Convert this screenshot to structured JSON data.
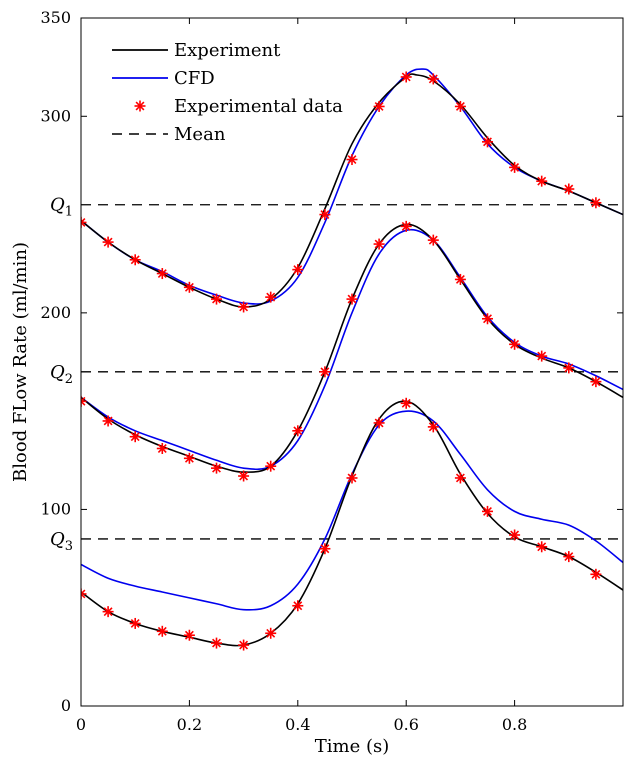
{
  "chart_data": {
    "type": "line",
    "title": "",
    "xlabel": "Time (s)",
    "ylabel": "Blood FLow Rate (ml/min)",
    "xlim": [
      0,
      1
    ],
    "ylim": [
      0,
      350
    ],
    "x_ticks": [
      "0",
      "0.2",
      "0.4",
      "0.6",
      "0.8"
    ],
    "x_tick_values": [
      0,
      0.2,
      0.4,
      0.6,
      0.8
    ],
    "y_ticks": [
      "0",
      "100",
      "200",
      "300",
      "350"
    ],
    "y_tick_values": [
      0,
      100,
      200,
      300,
      350
    ],
    "legend_position": "top-left",
    "legend": [
      {
        "key": "experiment",
        "label": "Experiment",
        "style": "solid",
        "color": "#000000"
      },
      {
        "key": "cfd",
        "label": "CFD",
        "style": "solid",
        "color": "#0000ee"
      },
      {
        "key": "data",
        "label": "Experimental data",
        "style": "marker",
        "color": "#ff0000"
      },
      {
        "key": "mean",
        "label": "Mean",
        "style": "dashed",
        "color": "#000000"
      }
    ],
    "mean_lines": [
      {
        "label": "Q",
        "sub": "1",
        "value": 255
      },
      {
        "label": "Q",
        "sub": "2",
        "value": 170
      },
      {
        "label": "Q",
        "sub": "3",
        "value": 85
      }
    ],
    "series": [
      {
        "group": "Q1",
        "experiment": {
          "x": [
            0,
            0.05,
            0.1,
            0.15,
            0.2,
            0.25,
            0.3,
            0.35,
            0.4,
            0.45,
            0.5,
            0.55,
            0.6,
            0.62,
            0.65,
            0.7,
            0.75,
            0.8,
            0.85,
            0.9,
            0.95,
            1.0
          ],
          "y": [
            247,
            236,
            227,
            220,
            213,
            207,
            203,
            207,
            223,
            253,
            286,
            307,
            320,
            321,
            318,
            306,
            289,
            275,
            267,
            262,
            256,
            250
          ]
        },
        "cfd": {
          "x": [
            0,
            0.05,
            0.1,
            0.15,
            0.2,
            0.25,
            0.3,
            0.35,
            0.4,
            0.45,
            0.5,
            0.55,
            0.6,
            0.63,
            0.65,
            0.7,
            0.75,
            0.8,
            0.85,
            0.9,
            0.95,
            1.0
          ],
          "y": [
            247,
            236,
            227,
            221,
            214,
            209,
            205,
            206,
            218,
            246,
            280,
            305,
            321,
            324,
            321,
            305,
            286,
            274,
            267,
            262,
            256,
            250
          ]
        },
        "data": {
          "x": [
            0,
            0.05,
            0.1,
            0.15,
            0.2,
            0.25,
            0.3,
            0.35,
            0.4,
            0.45,
            0.5,
            0.55,
            0.6,
            0.65,
            0.7,
            0.75,
            0.8,
            0.85,
            0.9,
            0.95
          ],
          "y": [
            246,
            236,
            227,
            220,
            213,
            207,
            203,
            208,
            222,
            250,
            278,
            305,
            320,
            319,
            305,
            287,
            274,
            267,
            263,
            256
          ]
        }
      },
      {
        "group": "Q2",
        "experiment": {
          "x": [
            0,
            0.05,
            0.1,
            0.15,
            0.2,
            0.25,
            0.3,
            0.35,
            0.4,
            0.45,
            0.5,
            0.55,
            0.6,
            0.65,
            0.7,
            0.75,
            0.8,
            0.85,
            0.9,
            0.95,
            1.0
          ],
          "y": [
            157,
            146,
            138,
            132,
            127,
            122,
            119,
            122,
            140,
            170,
            207,
            235,
            245,
            237,
            217,
            197,
            184,
            177,
            172,
            165,
            157
          ]
        },
        "cfd": {
          "x": [
            0,
            0.05,
            0.1,
            0.15,
            0.2,
            0.25,
            0.3,
            0.35,
            0.4,
            0.45,
            0.5,
            0.55,
            0.6,
            0.65,
            0.7,
            0.75,
            0.8,
            0.85,
            0.9,
            0.95,
            1.0
          ],
          "y": [
            157,
            147,
            140,
            135,
            130,
            125,
            121,
            122,
            135,
            163,
            200,
            230,
            242,
            237,
            218,
            198,
            185,
            178,
            174,
            168,
            161
          ]
        },
        "data": {
          "x": [
            0,
            0.05,
            0.1,
            0.15,
            0.2,
            0.25,
            0.3,
            0.35,
            0.4,
            0.45,
            0.5,
            0.55,
            0.6,
            0.65,
            0.7,
            0.75,
            0.8,
            0.85,
            0.9,
            0.95
          ],
          "y": [
            155,
            145,
            137,
            131,
            126,
            121,
            117,
            122,
            140,
            170,
            207,
            235,
            244,
            237,
            217,
            197,
            184,
            178,
            172,
            165
          ]
        }
      },
      {
        "group": "Q3",
        "experiment": {
          "x": [
            0,
            0.05,
            0.1,
            0.15,
            0.2,
            0.25,
            0.3,
            0.35,
            0.4,
            0.45,
            0.5,
            0.55,
            0.6,
            0.65,
            0.7,
            0.75,
            0.8,
            0.85,
            0.9,
            0.95,
            1.0
          ],
          "y": [
            58,
            48,
            42,
            38,
            35,
            32,
            31,
            37,
            52,
            80,
            117,
            146,
            155,
            143,
            118,
            98,
            86,
            81,
            76,
            68,
            59
          ]
        },
        "cfd": {
          "x": [
            0,
            0.05,
            0.1,
            0.15,
            0.2,
            0.25,
            0.3,
            0.35,
            0.4,
            0.45,
            0.5,
            0.55,
            0.6,
            0.65,
            0.7,
            0.75,
            0.8,
            0.85,
            0.9,
            0.95,
            1.0
          ],
          "y": [
            72,
            65,
            61,
            58,
            55,
            52,
            49,
            51,
            62,
            85,
            118,
            143,
            150,
            145,
            128,
            110,
            99,
            95,
            92,
            84,
            73
          ]
        },
        "data": {
          "x": [
            0,
            0.05,
            0.1,
            0.15,
            0.2,
            0.25,
            0.3,
            0.35,
            0.4,
            0.45,
            0.5,
            0.55,
            0.6,
            0.65,
            0.7,
            0.75,
            0.8,
            0.85,
            0.9,
            0.95
          ],
          "y": [
            57,
            48,
            42,
            38,
            36,
            32,
            31,
            37,
            51,
            80,
            116,
            144,
            154,
            142,
            116,
            99,
            87,
            81,
            76,
            67
          ]
        }
      }
    ]
  }
}
